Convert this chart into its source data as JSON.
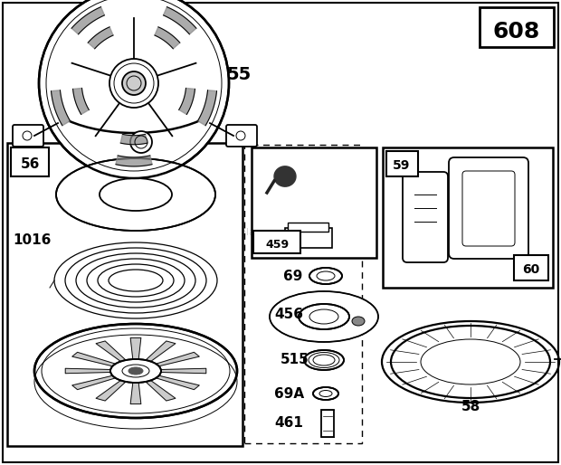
{
  "bg_color": "#ffffff",
  "title_num": "608",
  "fig_w": 6.2,
  "fig_h": 5.14,
  "dpi": 100
}
